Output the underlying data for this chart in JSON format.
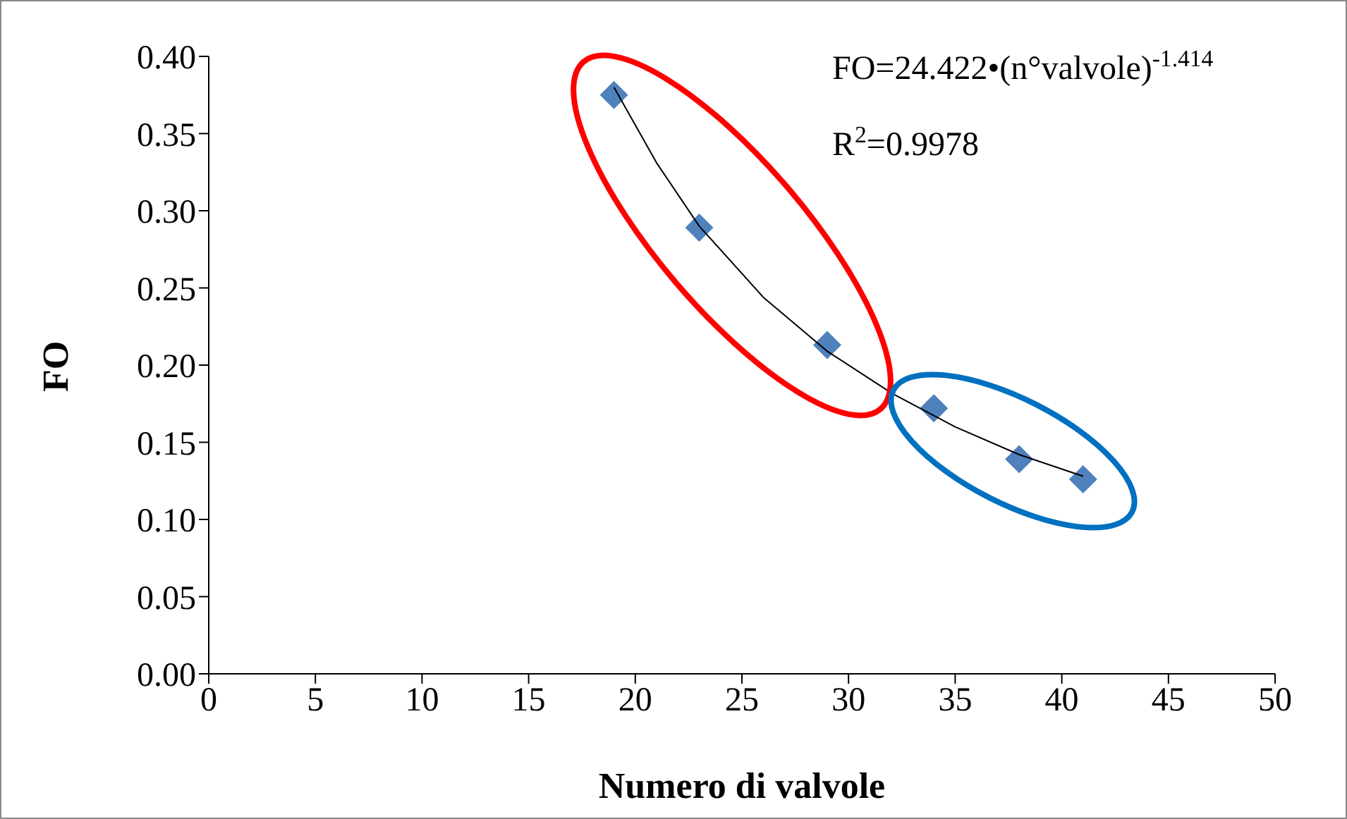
{
  "chart_data": {
    "type": "scatter",
    "xlabel": "Numero di valvole",
    "ylabel": "FO",
    "annotations": [
      "FO=24.422•(n°valvole)$^{-1.414}$",
      "R$^{2}$=0.9978"
    ],
    "series": [
      {
        "color": "#4f81bd",
        "marker": "diamond",
        "x": [
          19,
          23,
          29,
          34,
          38,
          41
        ],
        "values": [
          0.375,
          0.289,
          0.213,
          0.172,
          0.139,
          0.126
        ]
      },
      {
        "type": "line",
        "color": "#000000",
        "x": [
          19,
          21,
          23,
          26,
          29,
          32,
          35,
          38,
          41
        ],
        "values": [
          0.38,
          0.331,
          0.29,
          0.244,
          0.209,
          0.182,
          0.16,
          0.142,
          0.128
        ]
      }
    ],
    "xlim": [
      0,
      50
    ],
    "xticks": [
      0,
      5,
      10,
      15,
      20,
      25,
      30,
      35,
      40,
      45,
      50
    ],
    "ylim": [
      0,
      0.4
    ],
    "yticks": [
      {
        "value": 0,
        "label": "0.00"
      },
      {
        "value": 0.05,
        "label": "0.05"
      },
      {
        "value": 0.1,
        "label": "0.10"
      },
      {
        "value": 0.15,
        "label": "0.15"
      },
      {
        "value": 0.2,
        "label": "0.20"
      },
      {
        "value": 0.25,
        "label": "0.25"
      },
      {
        "value": 0.3,
        "label": "0.30"
      },
      {
        "value": 0.35,
        "label": "0.35"
      },
      {
        "value": 0.4,
        "label": "0.40"
      }
    ],
    "grid": false,
    "legend": false
  }
}
